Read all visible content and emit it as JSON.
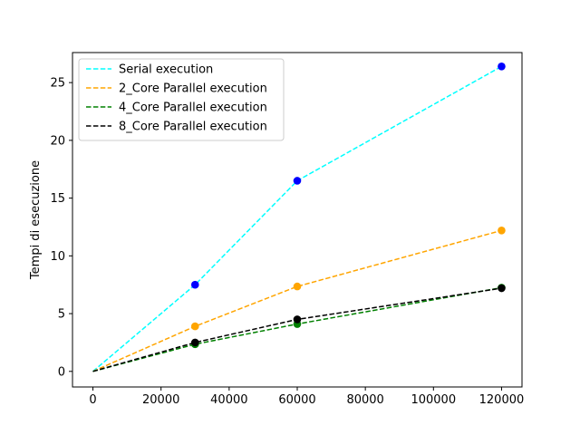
{
  "chart_data": {
    "type": "line",
    "title": "",
    "xlabel": "",
    "ylabel": "Tempi di esecuzione",
    "xlim": [
      -6000,
      126000
    ],
    "ylim": [
      -1.35,
      27.6
    ],
    "xticks": [
      0,
      20000,
      40000,
      60000,
      80000,
      100000,
      120000
    ],
    "xtick_labels": [
      "0",
      "20000",
      "40000",
      "60000",
      "80000",
      "100000",
      "120000"
    ],
    "yticks": [
      0,
      5,
      10,
      15,
      20,
      25
    ],
    "ytick_labels": [
      "0",
      "5",
      "10",
      "15",
      "20",
      "25"
    ],
    "grid": false,
    "legend_position": "top-left",
    "series": [
      {
        "name": "Serial execution",
        "line_color": "#00ffff",
        "marker_color": "#0000ff",
        "x": [
          0,
          30000,
          60000,
          120000
        ],
        "y": [
          0,
          7.5,
          16.5,
          26.4
        ]
      },
      {
        "name": "2_Core Parallel execution",
        "line_color": "#ffa500",
        "marker_color": "#ffa500",
        "x": [
          0,
          30000,
          60000,
          120000
        ],
        "y": [
          0,
          3.9,
          7.35,
          12.2
        ]
      },
      {
        "name": "4_Core Parallel execution",
        "line_color": "#008000",
        "marker_color": "#008000",
        "x": [
          0,
          30000,
          60000,
          120000
        ],
        "y": [
          0,
          2.35,
          4.1,
          7.25
        ]
      },
      {
        "name": "8_Core Parallel execution",
        "line_color": "#000000",
        "marker_color": "#000000",
        "x": [
          0,
          30000,
          60000,
          120000
        ],
        "y": [
          0,
          2.5,
          4.5,
          7.2
        ]
      }
    ]
  }
}
